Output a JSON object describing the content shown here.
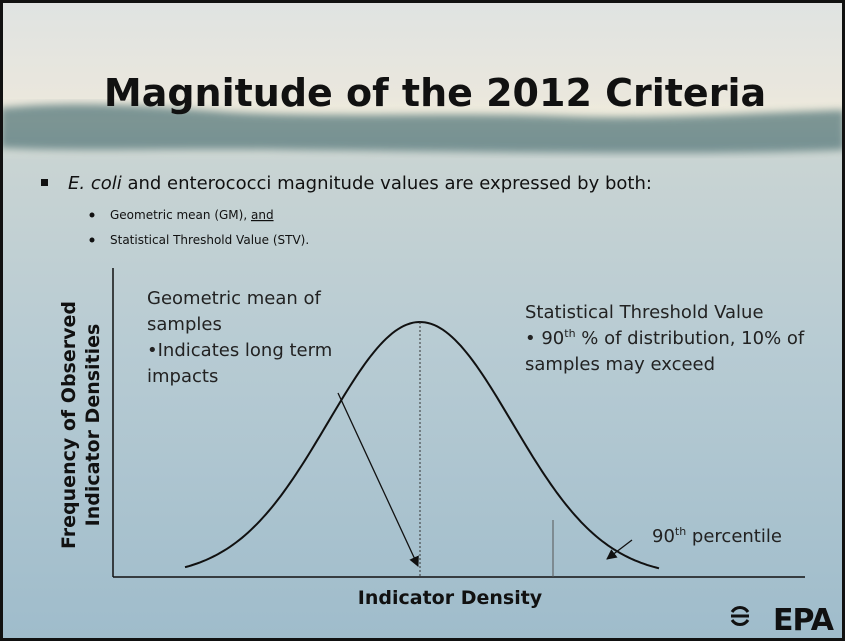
{
  "title": "Magnitude of the 2012 Criteria",
  "bullets": {
    "main": {
      "italic": "E. coli",
      "rest": " and enterococci magnitude values are expressed by both:"
    },
    "sub": [
      {
        "text": "Geometric mean (GM), ",
        "underlined": "and"
      },
      {
        "text": "Statistical Threshold Value (STV)."
      }
    ]
  },
  "diagram": {
    "y_label_lines": [
      "Frequency of Observed",
      "Indicator Densities"
    ],
    "x_label": "Indicator Density",
    "gm_note": [
      "Geometric mean of",
      "samples",
      "•Indicates long term",
      "impacts"
    ],
    "stv_note": {
      "heading": "Statistical Threshold Value",
      "line2_start": "• 90",
      "line2_sup": "th",
      "line2_end": " % of distribution, 10% of",
      "line3": "samples may exceed"
    },
    "percentile": {
      "number": "90",
      "sup": "th",
      "rest": " percentile"
    }
  },
  "logo": "EPA"
}
